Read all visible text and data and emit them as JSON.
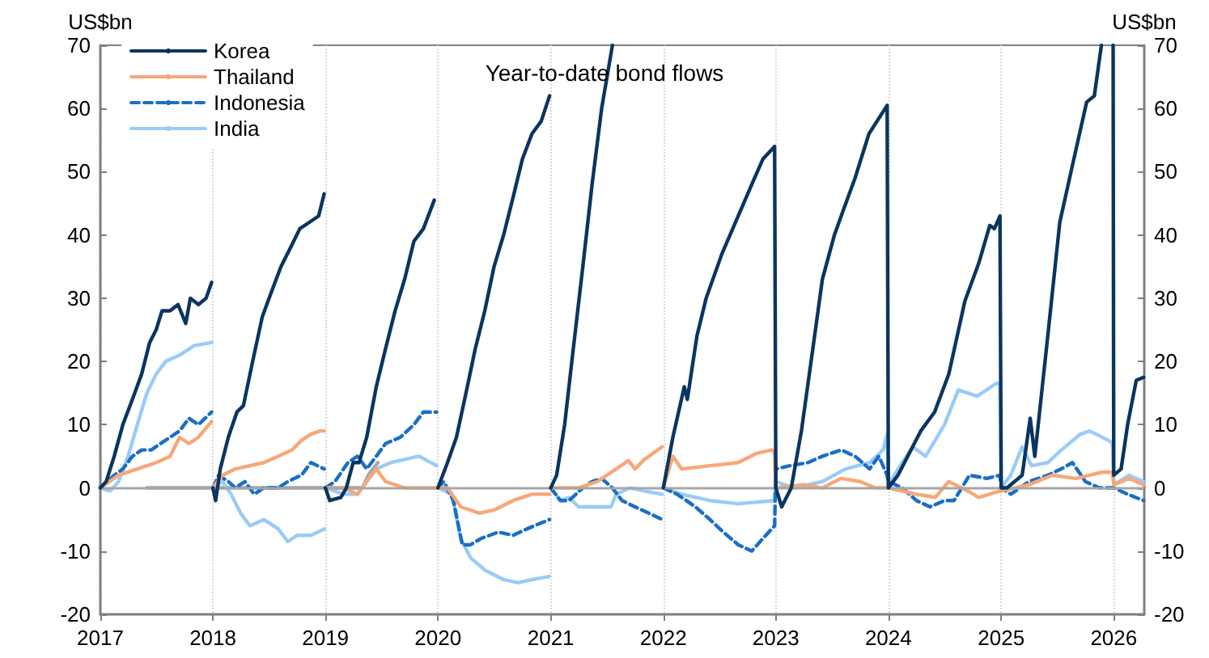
{
  "chart_data": {
    "type": "line",
    "title": "Year-to-date bond flows",
    "ylabel": "US$bn",
    "y2label": "US$bn",
    "xlim": [
      "2017-01-01",
      "2026-04-10"
    ],
    "xticks": [
      "2017",
      "2018",
      "2019",
      "2020",
      "2021",
      "2022",
      "2023",
      "2024",
      "2025",
      "2026"
    ],
    "ylim": [
      -20,
      70
    ],
    "yticks": [
      -20,
      -10,
      0,
      10,
      20,
      30,
      40,
      50,
      60,
      70
    ],
    "y2lim": [
      -20,
      70
    ],
    "y2ticks": [
      -20,
      -10,
      0,
      10,
      20,
      30,
      40,
      50,
      60,
      70
    ],
    "grid": "x",
    "legend": "top left",
    "marker": "none",
    "ref_lines": [
      {
        "axis": "y",
        "value": 0,
        "color": "#a6a6a6"
      }
    ],
    "series": [
      {
        "name": "Korea",
        "color": "#0a3560",
        "line_style": "solid",
        "x": [
          "2017-01-01",
          "2017-01-20",
          "2017-02-15",
          "2017-03-15",
          "2017-04-15",
          "2017-05-15",
          "2017-06-10",
          "2017-07-01",
          "2017-07-20",
          "2017-08-15",
          "2017-09-10",
          "2017-10-05",
          "2017-10-20",
          "2017-11-15",
          "2017-12-10",
          "2017-12-28",
          "2017-12-30",
          "2018-01-01",
          "2018-01-10",
          "2018-01-25",
          "2018-02-20",
          "2018-03-20",
          "2018-04-10",
          "2018-05-10",
          "2018-06-10",
          "2018-07-10",
          "2018-08-10",
          "2018-09-10",
          "2018-10-10",
          "2018-11-10",
          "2018-12-10",
          "2018-12-28",
          "2018-12-30",
          "2019-01-01",
          "2019-01-15",
          "2019-02-20",
          "2019-03-10",
          "2019-04-01",
          "2019-04-20",
          "2019-05-15",
          "2019-06-15",
          "2019-07-15",
          "2019-08-15",
          "2019-09-15",
          "2019-10-15",
          "2019-11-15",
          "2019-12-20",
          "2019-12-30",
          "2020-01-01",
          "2020-02-01",
          "2020-03-01",
          "2020-04-01",
          "2020-05-01",
          "2020-06-01",
          "2020-07-01",
          "2020-08-01",
          "2020-09-01",
          "2020-10-01",
          "2020-11-01",
          "2020-12-01",
          "2020-12-28",
          "2020-12-30",
          "2021-01-01",
          "2021-01-20",
          "2021-02-15",
          "2021-03-15",
          "2021-04-15",
          "2021-05-15",
          "2021-06-15",
          "2021-07-20",
          "2021-08-01",
          "2022-01-01",
          "2022-02-01",
          "2022-03-10",
          "2022-03-20",
          "2022-04-20",
          "2022-05-20",
          "2022-07-10",
          "2022-09-01",
          "2022-10-15",
          "2022-11-20",
          "2022-12-28",
          "2023-01-01",
          "2023-01-20",
          "2023-02-20",
          "2023-03-25",
          "2023-05-01",
          "2023-06-01",
          "2023-07-10",
          "2023-08-01",
          "2023-09-15",
          "2023-10-30",
          "2023-12-28",
          "2024-01-01",
          "2024-02-01",
          "2024-04-15",
          "2024-05-30",
          "2024-07-15",
          "2024-09-05",
          "2024-10-20",
          "2024-11-25",
          "2024-12-10",
          "2024-12-28",
          "2025-01-01",
          "2025-01-20",
          "2025-03-10",
          "2025-04-05",
          "2025-04-20",
          "2025-06-01",
          "2025-07-10",
          "2025-08-20",
          "2025-10-05",
          "2025-10-30",
          "2025-11-22",
          "2025-11-28",
          "2025-12-30",
          "2026-01-01",
          "2026-01-25",
          "2026-02-15",
          "2026-03-15",
          "2026-04-08"
        ],
        "values": [
          0,
          1,
          5,
          10,
          14,
          18,
          23,
          25,
          28,
          28,
          29,
          26,
          30,
          29,
          30,
          32.5,
          null,
          0,
          -2,
          3,
          8,
          12,
          13,
          20,
          27,
          31,
          35,
          38,
          41,
          42,
          43,
          46.5,
          null,
          0,
          -2,
          -1.5,
          0,
          4,
          4,
          8,
          16,
          22,
          28,
          33,
          39,
          41,
          45.5,
          null,
          0,
          4,
          8,
          15,
          22,
          28,
          35,
          40,
          46,
          52,
          56,
          58,
          62,
          null,
          0,
          2,
          10,
          22,
          35,
          48,
          60,
          70,
          null,
          0,
          8,
          16,
          14,
          24,
          30,
          37,
          43,
          48,
          52,
          54,
          0,
          -3,
          0,
          9,
          22,
          33,
          40,
          43,
          49,
          56,
          60.5,
          0,
          2,
          9,
          12,
          18,
          29.5,
          35.5,
          41.5,
          41,
          43,
          0,
          0,
          2,
          11,
          5,
          24,
          42,
          51,
          61,
          62,
          70,
          null,
          70,
          2,
          3,
          10,
          17,
          17.5
        ]
      },
      {
        "name": "Thailand",
        "color": "#f7a878",
        "line_style": "solid",
        "x": [
          "2017-01-01",
          "2017-03-01",
          "2017-05-01",
          "2017-07-01",
          "2017-08-15",
          "2017-09-15",
          "2017-10-15",
          "2017-11-15",
          "2017-12-28",
          "2017-12-30",
          "2018-01-01",
          "2018-02-01",
          "2018-03-15",
          "2018-05-01",
          "2018-06-15",
          "2018-08-01",
          "2018-09-15",
          "2018-10-15",
          "2018-11-15",
          "2018-12-15",
          "2018-12-28",
          "2018-12-30",
          "2019-01-01",
          "2019-03-01",
          "2019-04-15",
          "2019-05-15",
          "2019-06-15",
          "2019-07-15",
          "2019-09-15",
          "2019-12-28",
          "2019-12-30",
          "2020-01-01",
          "2020-02-01",
          "2020-03-15",
          "2020-05-15",
          "2020-07-01",
          "2020-09-01",
          "2020-11-01",
          "2020-12-28",
          "2020-12-30",
          "2021-01-01",
          "2021-04-01",
          "2021-06-01",
          "2021-08-01",
          "2021-09-10",
          "2021-10-01",
          "2021-11-01",
          "2021-12-28",
          "2021-12-30",
          "2022-01-01",
          "2022-02-01",
          "2022-03-01",
          "2022-06-01",
          "2022-09-01",
          "2022-11-01",
          "2022-12-20",
          "2022-12-28",
          "2023-01-01",
          "2023-04-01",
          "2023-06-01",
          "2023-08-01",
          "2023-10-01",
          "2023-11-20",
          "2023-12-28",
          "2024-01-01",
          "2024-04-01",
          "2024-06-01",
          "2024-07-15",
          "2024-09-15",
          "2024-10-20",
          "2024-12-28",
          "2025-01-01",
          "2025-04-01",
          "2025-06-15",
          "2025-09-01",
          "2025-11-25",
          "2025-12-28",
          "2026-01-01",
          "2026-02-20",
          "2026-04-08"
        ],
        "values": [
          0,
          2,
          3,
          4,
          5,
          8,
          7,
          8,
          10.5,
          null,
          0,
          2,
          3,
          3.5,
          4,
          5,
          6,
          7.5,
          8.5,
          9,
          9,
          null,
          0,
          0,
          -1,
          1,
          3,
          1,
          0,
          0,
          null,
          0,
          0,
          -3,
          -4,
          -3.5,
          -2,
          -1,
          -1,
          null,
          0,
          0,
          1,
          3,
          4.3,
          3,
          4.5,
          6.5,
          null,
          0,
          5,
          3,
          3.5,
          4,
          5.5,
          6,
          5.5,
          0,
          0.5,
          0,
          1.5,
          1,
          0,
          0,
          0,
          -1,
          -1.5,
          1,
          -0.5,
          -1.5,
          -0.5,
          -0.5,
          0.5,
          2,
          1.5,
          2.5,
          2.5,
          0.5,
          1.5,
          0.5
        ]
      },
      {
        "name": "Indonesia",
        "color": "#1a6fc4",
        "line_style": "dashed",
        "x": [
          "2017-01-01",
          "2017-02-15",
          "2017-03-15",
          "2017-04-15",
          "2017-05-15",
          "2017-06-15",
          "2017-07-15",
          "2017-08-15",
          "2017-09-15",
          "2017-10-15",
          "2017-11-15",
          "2017-12-28",
          "2017-12-30",
          "2018-01-01",
          "2018-01-20",
          "2018-02-20",
          "2018-03-15",
          "2018-04-15",
          "2018-05-15",
          "2018-06-15",
          "2018-08-01",
          "2018-09-01",
          "2018-10-15",
          "2018-11-15",
          "2018-12-28",
          "2018-12-30",
          "2019-01-01",
          "2019-02-01",
          "2019-03-15",
          "2019-04-15",
          "2019-05-15",
          "2019-06-15",
          "2019-07-15",
          "2019-09-01",
          "2019-10-15",
          "2019-11-15",
          "2019-12-28",
          "2019-12-30",
          "2020-01-01",
          "2020-01-20",
          "2020-02-20",
          "2020-03-20",
          "2020-04-15",
          "2020-05-20",
          "2020-07-15",
          "2020-09-01",
          "2020-10-15",
          "2020-12-28",
          "2020-12-30",
          "2021-01-01",
          "2021-02-01",
          "2021-03-01",
          "2021-04-15",
          "2021-05-15",
          "2021-06-15",
          "2021-07-20",
          "2021-08-20",
          "2021-10-01",
          "2021-11-15",
          "2021-12-28",
          "2021-12-30",
          "2022-01-01",
          "2022-02-15",
          "2022-04-15",
          "2022-06-01",
          "2022-07-15",
          "2022-09-01",
          "2022-10-15",
          "2022-11-20",
          "2022-12-28",
          "2023-01-01",
          "2023-02-15",
          "2023-04-15",
          "2023-06-01",
          "2023-08-01",
          "2023-09-15",
          "2023-11-01",
          "2023-12-01",
          "2023-12-28",
          "2024-01-01",
          "2024-02-15",
          "2024-04-01",
          "2024-05-15",
          "2024-07-01",
          "2024-08-01",
          "2024-09-20",
          "2024-11-15",
          "2024-12-28",
          "2025-01-01",
          "2025-02-01",
          "2025-04-01",
          "2025-06-01",
          "2025-07-15",
          "2025-08-20",
          "2025-10-01",
          "2025-11-15",
          "2025-12-28",
          "2026-01-01",
          "2026-02-15",
          "2026-04-08"
        ],
        "values": [
          0,
          2,
          3,
          5,
          6,
          6,
          7,
          8,
          9,
          11,
          10,
          12,
          null,
          0,
          2,
          1,
          0,
          1,
          -1,
          0,
          0,
          1,
          2,
          4,
          3,
          null,
          0,
          1,
          4,
          5,
          3,
          5,
          7,
          8,
          10,
          12,
          12,
          null,
          0,
          1,
          -2,
          -9,
          -9,
          -8,
          -7,
          -7.5,
          -6.5,
          -5,
          null,
          0,
          -2,
          -2,
          0,
          1,
          1.5,
          0,
          -2,
          -3,
          -4,
          -5,
          null,
          0,
          -1,
          -3,
          -5,
          -7,
          -9,
          -10,
          -8,
          -6,
          3,
          3.5,
          4,
          5,
          6,
          5,
          3,
          5,
          2,
          1,
          0,
          -2,
          -3,
          -2,
          -2,
          2,
          1.5,
          2,
          0,
          -1,
          1,
          2,
          3,
          4,
          1,
          0,
          0,
          0,
          -1,
          -2
        ]
      },
      {
        "name": "India",
        "color": "#99ccf7",
        "line_style": "solid",
        "x": [
          "2017-01-01",
          "2017-02-01",
          "2017-03-01",
          "2017-04-01",
          "2017-05-01",
          "2017-06-01",
          "2017-07-01",
          "2017-08-01",
          "2017-09-15",
          "2017-11-01",
          "2017-12-28",
          "2017-12-30",
          "2018-01-01",
          "2018-02-01",
          "2018-03-01",
          "2018-04-01",
          "2018-05-01",
          "2018-06-15",
          "2018-08-01",
          "2018-09-01",
          "2018-10-01",
          "2018-11-15",
          "2018-12-28",
          "2018-12-30",
          "2019-01-01",
          "2019-03-01",
          "2019-04-15",
          "2019-05-15",
          "2019-06-15",
          "2019-08-01",
          "2019-09-15",
          "2019-11-01",
          "2019-12-28",
          "2019-12-30",
          "2020-01-01",
          "2020-02-15",
          "2020-03-15",
          "2020-04-15",
          "2020-06-01",
          "2020-08-01",
          "2020-09-15",
          "2020-11-01",
          "2020-12-28",
          "2020-12-30",
          "2021-01-01",
          "2021-02-01",
          "2021-03-01",
          "2021-04-01",
          "2021-06-01",
          "2021-07-15",
          "2021-08-01",
          "2021-09-15",
          "2021-11-01",
          "2021-12-28",
          "2021-12-30",
          "2022-01-01",
          "2022-03-01",
          "2022-06-01",
          "2022-09-01",
          "2022-12-28",
          "2023-01-01",
          "2023-03-01",
          "2023-06-01",
          "2023-08-15",
          "2023-11-01",
          "2023-12-15",
          "2023-12-28",
          "2024-01-01",
          "2024-02-15",
          "2024-03-20",
          "2024-05-01",
          "2024-07-01",
          "2024-08-15",
          "2024-10-15",
          "2024-12-15",
          "2024-12-28",
          "2025-01-01",
          "2025-02-01",
          "2025-03-10",
          "2025-04-10",
          "2025-06-01",
          "2025-07-15",
          "2025-09-15",
          "2025-10-15",
          "2025-12-15",
          "2025-12-28",
          "2026-01-01",
          "2026-02-20",
          "2026-04-08"
        ],
        "values": [
          0,
          -0.5,
          1,
          5,
          10,
          15,
          18,
          20,
          21,
          22.5,
          23,
          null,
          0,
          1,
          -1,
          -4,
          -6,
          -5,
          -6.5,
          -8.5,
          -7.5,
          -7.5,
          -6.5,
          null,
          0,
          -1,
          -1,
          1,
          3,
          4,
          4.5,
          5,
          3.5,
          null,
          0,
          -1,
          -8,
          -11,
          -13,
          -14.5,
          -15,
          -14.5,
          -14,
          null,
          0,
          -2,
          -1.5,
          -3,
          -3,
          -3,
          -1,
          0,
          -0.5,
          -1,
          null,
          0,
          -1,
          -2,
          -2.5,
          -2,
          1,
          0,
          1,
          3,
          4,
          6,
          8.5,
          0.5,
          4,
          6.5,
          5,
          10,
          15.5,
          14.5,
          16.5,
          16.5,
          0,
          2,
          6.5,
          3.5,
          4,
          6,
          8.5,
          9,
          7.5,
          7,
          0.5,
          2,
          1
        ]
      },
      {
        "color": "#a6a6a6",
        "line_style": "solid",
        "x": [
          "2017-06-01",
          "2019-05-01",
          "2019-05-20",
          "2019-06-20"
        ],
        "values": [
          0,
          0,
          2,
          4
        ]
      }
    ]
  }
}
